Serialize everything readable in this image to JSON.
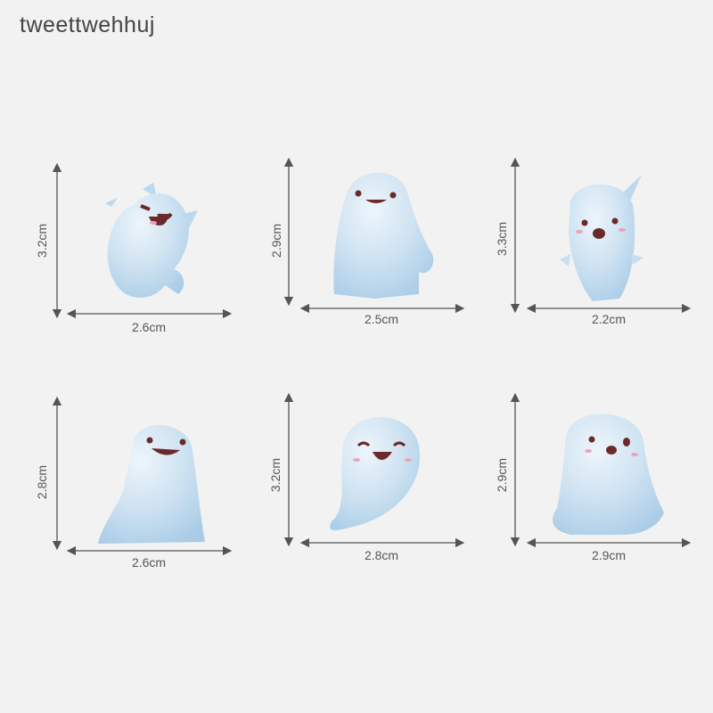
{
  "watermark": "tweettwehhuj",
  "colors": {
    "background": "#f2f2f2",
    "ghost_body": "#c9dff0",
    "ghost_shade": "#a9cbe6",
    "face": "#6b2a2a",
    "blush": "#f2a0b8",
    "arrow": "#555555"
  },
  "figures": [
    {
      "height": "3.2cm",
      "width": "2.6cm"
    },
    {
      "height": "2.9cm",
      "width": "2.5cm"
    },
    {
      "height": "3.3cm",
      "width": "2.2cm"
    },
    {
      "height": "2.8cm",
      "width": "2.6cm"
    },
    {
      "height": "3.2cm",
      "width": "2.8cm"
    },
    {
      "height": "2.9cm",
      "width": "2.9cm"
    }
  ]
}
